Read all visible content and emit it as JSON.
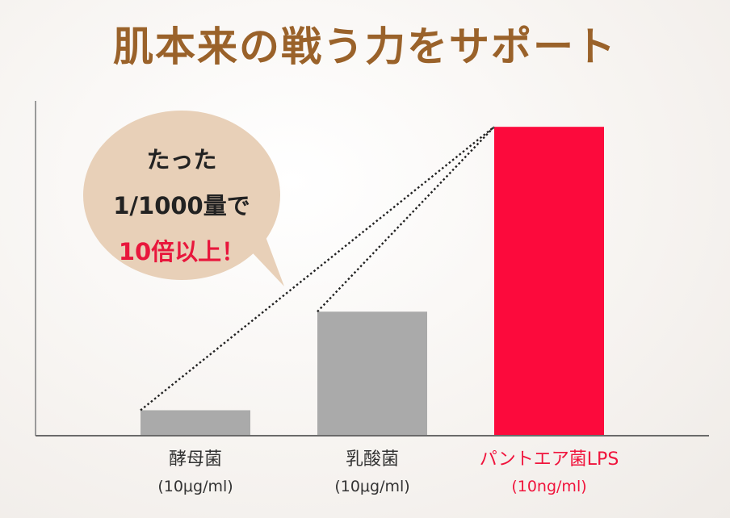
{
  "title": "肌本来の戦う力をサポート",
  "callout": {
    "line1": "たった",
    "line2": "1/1000量で",
    "line3": "10倍以上！"
  },
  "colors": {
    "title": "#9a622a",
    "bar_gray": "#aaaaaa",
    "bar_highlight": "#fc0a3c",
    "callout_bg": "#e8d0b8",
    "accent_text": "#e8173c"
  },
  "chart_data": {
    "type": "bar",
    "categories": [
      "酵母菌",
      "乳酸菌",
      "パントエア菌LPS"
    ],
    "units": [
      "(10μg/ml)",
      "(10μg/ml)",
      "(10ng/ml)"
    ],
    "values": [
      8,
      40,
      100
    ],
    "highlight_index": 2,
    "title": "肌本来の戦う力をサポート",
    "xlabel": "",
    "ylabel": "",
    "ylim": [
      0,
      110
    ],
    "grid": false
  }
}
